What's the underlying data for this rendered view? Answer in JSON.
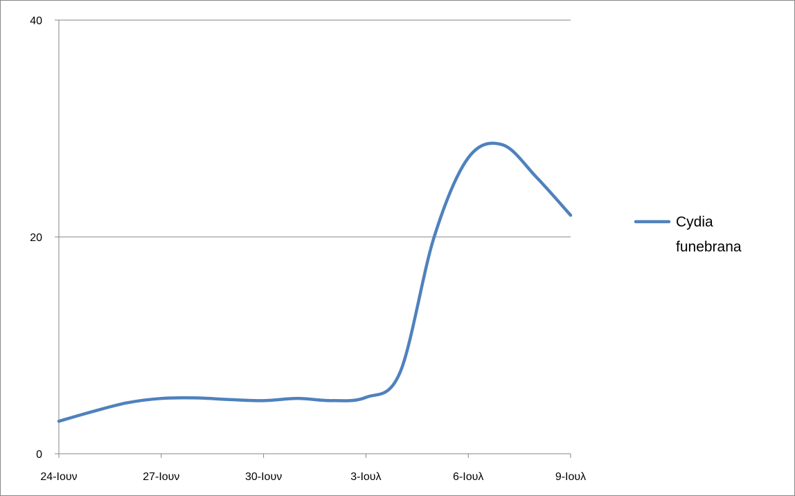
{
  "chart_data": {
    "type": "line",
    "smooth": true,
    "title": "",
    "xlabel": "",
    "ylabel": "",
    "x_tick_labels": [
      "24-Ιουν",
      "27-Ιουν",
      "30-Ιουν",
      "3-Ιουλ",
      "6-Ιουλ",
      "9-Ιουλ"
    ],
    "y_tick_labels": [
      "0",
      "20",
      "40"
    ],
    "ylim": [
      0,
      40
    ],
    "x": [
      "24-Ιουν",
      "25-Ιουν",
      "26-Ιουν",
      "27-Ιουν",
      "28-Ιουν",
      "29-Ιουν",
      "30-Ιουν",
      "1-Ιουλ",
      "2-Ιουλ",
      "3-Ιουλ",
      "4-Ιουλ",
      "5-Ιουλ",
      "6-Ιουλ",
      "7-Ιουλ",
      "8-Ιουλ",
      "9-Ιουλ"
    ],
    "series": [
      {
        "name": "Cydia funebrana",
        "color": "#4F81BD",
        "values": [
          3,
          3.9,
          4.7,
          5.1,
          5.15,
          5.0,
          4.9,
          5.1,
          4.9,
          5.2,
          7.5,
          20,
          27.3,
          28.5,
          25.5,
          22
        ]
      }
    ],
    "grid": {
      "horizontal": true,
      "vertical": false
    },
    "legend": {
      "position": "right",
      "lines": [
        "Cydia",
        "funebrana"
      ]
    },
    "colors": {
      "axis": "#868686",
      "gridline": "#868686",
      "frame": "#868686"
    }
  }
}
